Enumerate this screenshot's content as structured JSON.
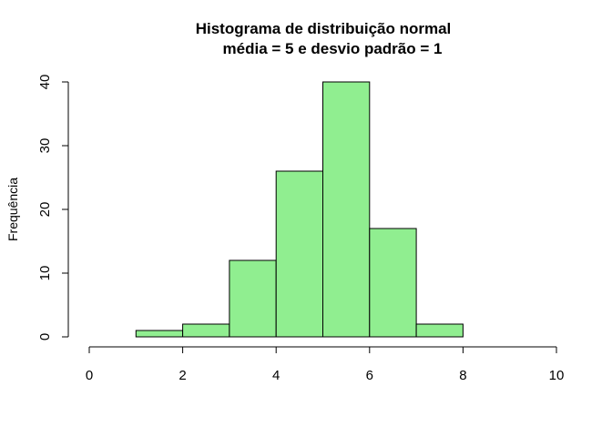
{
  "chart_data": {
    "type": "bar",
    "title": "Histograma de distribuição normal",
    "subtitle": "média = 5 e desvio padrão = 1",
    "xlabel": "",
    "ylabel": "Frequência",
    "bins": [
      {
        "x0": 1,
        "x1": 2,
        "count": 1
      },
      {
        "x0": 2,
        "x1": 3,
        "count": 2
      },
      {
        "x0": 3,
        "x1": 4,
        "count": 12
      },
      {
        "x0": 4,
        "x1": 5,
        "count": 26
      },
      {
        "x0": 5,
        "x1": 6,
        "count": 40
      },
      {
        "x0": 6,
        "x1": 7,
        "count": 17
      },
      {
        "x0": 7,
        "x1": 8,
        "count": 2
      }
    ],
    "xlim": [
      0,
      10
    ],
    "ylim": [
      0,
      40
    ],
    "xticks": [
      "0",
      "2",
      "4",
      "6",
      "8",
      "10"
    ],
    "yticks": [
      "0",
      "10",
      "20",
      "30",
      "40"
    ],
    "grid": false,
    "colors": {
      "bar_fill": "#90EE90",
      "bar_stroke": "#000000"
    }
  }
}
